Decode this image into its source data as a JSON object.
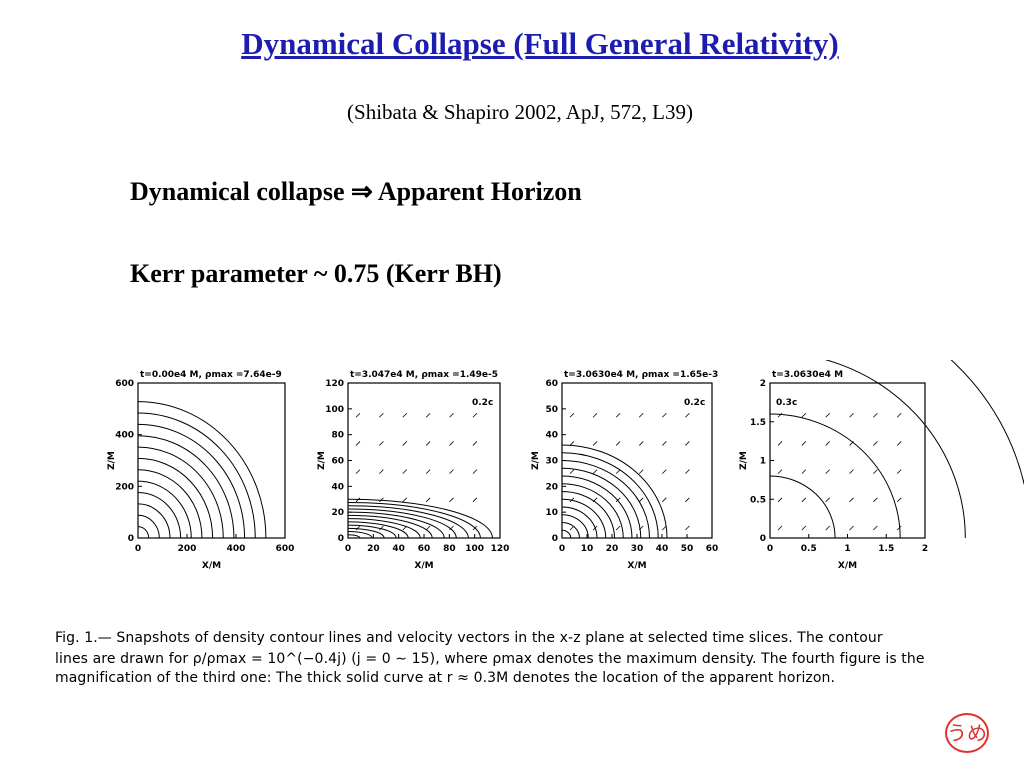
{
  "header": {
    "title": "Dynamical Collapse (Full General Relativity)",
    "citation": "(Shibata & Shapiro 2002, ApJ, 572, L39)"
  },
  "bullets": [
    "Dynamical collapse ⇒ Apparent Horizon",
    "Kerr parameter ~  0.75 (Kerr BH)"
  ],
  "panels": [
    {
      "header": "t=0.00e4 M,  ρmax =7.64e-9",
      "xlabel": "X/M",
      "ylabel": "Z/M",
      "xticks": [
        "0",
        "200",
        "400",
        "600"
      ],
      "yticks": [
        "0",
        "200",
        "400",
        "600"
      ]
    },
    {
      "header": "t=3.047e4 M,  ρmax =1.49e-5",
      "xlabel": "X/M",
      "ylabel": "Z/M",
      "xticks": [
        "0",
        "20",
        "40",
        "60",
        "80",
        "100",
        "120"
      ],
      "yticks": [
        "0",
        "20",
        "40",
        "60",
        "80",
        "100",
        "120"
      ],
      "annotation": "0.2c"
    },
    {
      "header": "t=3.0630e4 M,  ρmax =1.65e-3",
      "xlabel": "X/M",
      "ylabel": "Z/M",
      "xticks": [
        "0",
        "10",
        "20",
        "30",
        "40",
        "50",
        "60"
      ],
      "yticks": [
        "0",
        "10",
        "20",
        "30",
        "40",
        "50",
        "60"
      ],
      "annotation": "0.2c"
    },
    {
      "header": "t=3.0630e4 M",
      "xlabel": "X/M",
      "ylabel": "Z/M",
      "xticks": [
        "0",
        "0.5",
        "1",
        "1.5",
        "2"
      ],
      "yticks": [
        "0",
        "0.5",
        "1",
        "1.5",
        "2"
      ],
      "annotation": "0.3c"
    }
  ],
  "caption": [
    "Fig. 1.— Snapshots of density contour lines and velocity vectors in the x-z plane at selected time slices. The contour",
    "lines are drawn for ρ/ρmax = 10^(−0.4j) (j = 0 ∼ 15), where ρmax denotes the maximum density. The fourth figure is the",
    "magnification of the third one: The thick solid curve at r ≈ 0.3M denotes the location of the apparent horizon."
  ],
  "stamp": "うめ"
}
